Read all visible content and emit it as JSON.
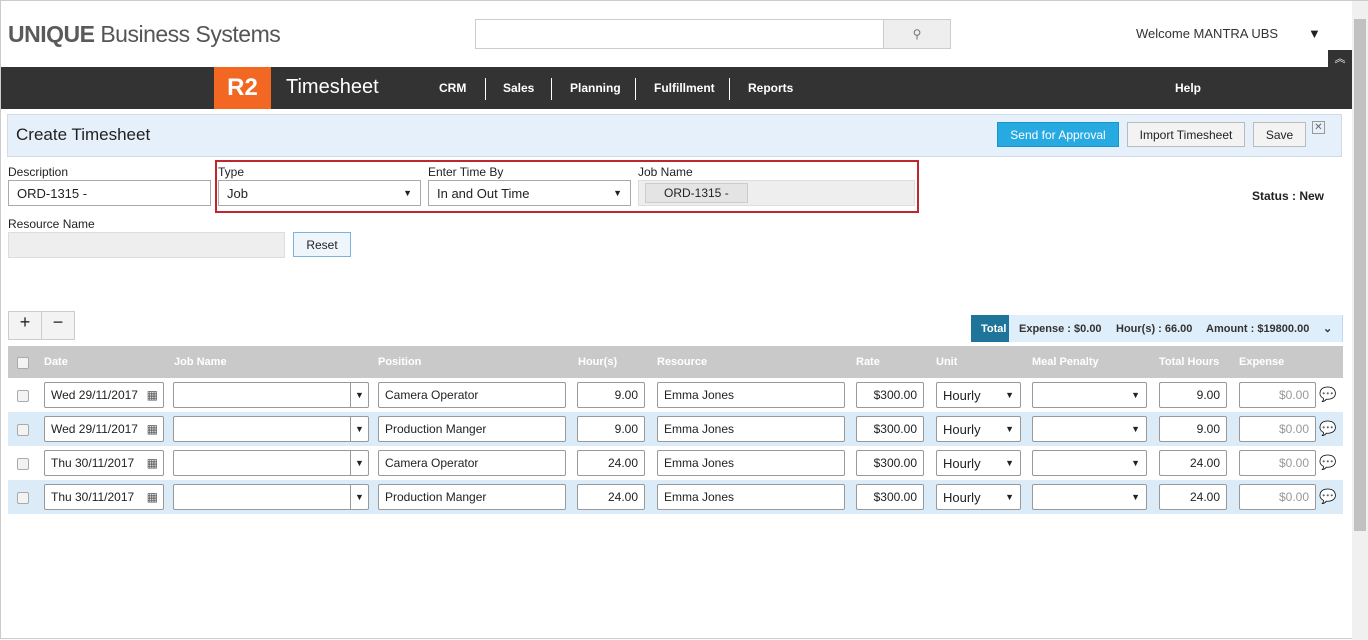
{
  "header": {
    "logo_bold": "UNIQUE",
    "logo_rest": " Business Systems",
    "search_placeholder": "",
    "welcome": "Welcome MANTRA UBS"
  },
  "nav": {
    "badge": "R2",
    "app": "Timesheet",
    "items": [
      "CRM",
      "Sales",
      "Planning",
      "Fulfillment",
      "Reports"
    ],
    "help": "Help"
  },
  "page": {
    "title": "Create Timesheet",
    "send": "Send for Approval",
    "import": "Import Timesheet",
    "save": "Save"
  },
  "form": {
    "description_label": "Description",
    "description": "ORD-1315 -",
    "type_label": "Type",
    "type": "Job",
    "enter_by_label": "Enter Time By",
    "enter_by": "In and Out Time",
    "job_label": "Job Name",
    "job": "ORD-1315 -",
    "status": "Status : New",
    "resource_label": "Resource Name",
    "reset": "Reset"
  },
  "totals": {
    "label": "Total",
    "expense": "Expense : $0.00",
    "hours": "Hour(s) : 66.00",
    "amount": "Amount : $19800.00"
  },
  "columns": [
    "Date",
    "Job Name",
    "Position",
    "Hour(s)",
    "Resource",
    "Rate",
    "Unit",
    "Meal Penalty",
    "Total Hours",
    "Expense"
  ],
  "rows": [
    {
      "date": "Wed 29/11/2017",
      "job": "",
      "position": "Camera Operator",
      "hours": "9.00",
      "resource": "Emma Jones",
      "rate": "$300.00",
      "unit": "Hourly",
      "meal": "",
      "total": "9.00",
      "expense": "$0.00"
    },
    {
      "date": "Wed 29/11/2017",
      "job": "",
      "position": "Production Manger",
      "hours": "9.00",
      "resource": "Emma Jones",
      "rate": "$300.00",
      "unit": "Hourly",
      "meal": "",
      "total": "9.00",
      "expense": "$0.00"
    },
    {
      "date": "Thu 30/11/2017",
      "job": "",
      "position": "Camera Operator",
      "hours": "24.00",
      "resource": "Emma Jones",
      "rate": "$300.00",
      "unit": "Hourly",
      "meal": "",
      "total": "24.00",
      "expense": "$0.00"
    },
    {
      "date": "Thu 30/11/2017",
      "job": "",
      "position": "Production Manger",
      "hours": "24.00",
      "resource": "Emma Jones",
      "rate": "$300.00",
      "unit": "Hourly",
      "meal": "",
      "total": "24.00",
      "expense": "$0.00"
    }
  ],
  "colors": {
    "accent": "#f26722",
    "nav": "#333333",
    "primary": "#27a9e1",
    "total": "#1f7599",
    "highlight": "#c0272d"
  }
}
